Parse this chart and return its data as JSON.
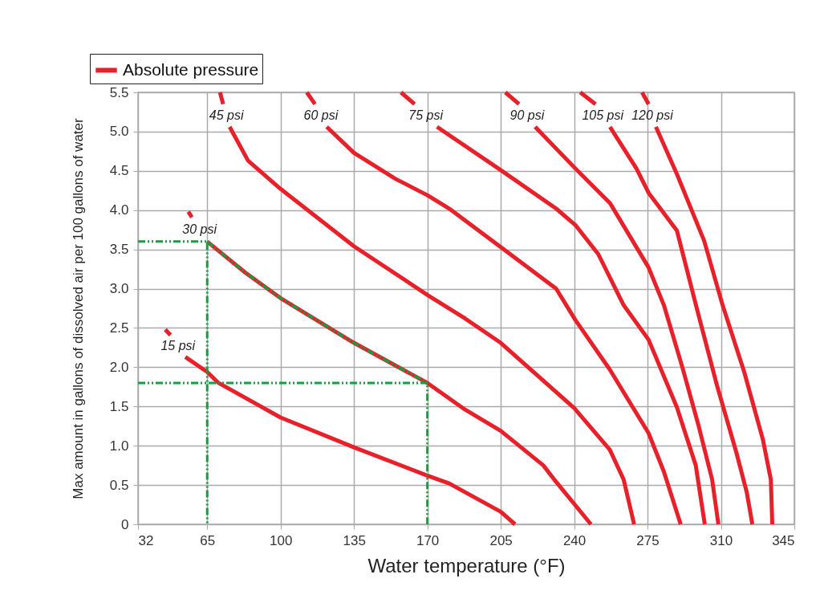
{
  "chart_data": {
    "type": "line",
    "xlabel": "Water temperature (°F)",
    "ylabel": "Max amount in gallons of dissolved air per 100 gallons of water",
    "legend_title": "Absolute pressure",
    "legend": "top left",
    "grid": true,
    "marker": "none",
    "xlim": [
      32,
      345
    ],
    "xticks": [
      32,
      65,
      100,
      135,
      170,
      205,
      240,
      275,
      310,
      345
    ],
    "ylim": [
      0,
      5.5
    ],
    "yticks": [
      0,
      0.5,
      {
        "value": 1,
        "label": "1.0"
      },
      1.5,
      {
        "value": 2,
        "label": "2.0"
      },
      2.5,
      {
        "value": 3,
        "label": "3.0"
      },
      3.5,
      {
        "value": 4,
        "label": "4.0"
      },
      4.5,
      {
        "value": 5,
        "label": "5.0"
      },
      5.5
    ],
    "series": [
      {
        "name": "15 psi",
        "color": "#e8202a",
        "x": [
          45,
          47.5,
          null,
          54.6,
          65,
          70.4,
          100,
          135,
          170,
          180.4,
          205,
          211.8
        ],
        "values": [
          2.48,
          2.41,
          null,
          2.13,
          1.94,
          1.8,
          1.36,
          0.98,
          0.62,
          0.52,
          0.16,
          0
        ]
      },
      {
        "name": "30 psi",
        "color": "#e8202a",
        "x": [
          56,
          57.7,
          null,
          65,
          83.4,
          100,
          135,
          170,
          188,
          205,
          225.3,
          231.4,
          248
        ],
        "values": [
          3.98,
          3.91,
          null,
          3.6,
          3.2,
          2.88,
          2.31,
          1.8,
          1.46,
          1.19,
          0.75,
          0.54,
          0
        ]
      },
      {
        "name": "45 psi",
        "color": "#e8202a",
        "x": [
          71.1,
          72.6,
          null,
          75.7,
          84.5,
          100,
          135,
          170,
          188,
          205,
          240,
          257,
          263.6,
          268.6
        ],
        "values": [
          5.5,
          5.35,
          null,
          5.06,
          4.63,
          4.27,
          3.54,
          2.92,
          2.62,
          2.31,
          1.48,
          0.95,
          0.57,
          0
        ]
      },
      {
        "name": "60 psi",
        "color": "#e8202a",
        "x": [
          112.5,
          116.4,
          null,
          122,
          135,
          154.7,
          170,
          180.4,
          205,
          231.4,
          240.6,
          257,
          275.5,
          282.8,
          290.8
        ],
        "values": [
          5.5,
          5.35,
          null,
          5.06,
          4.73,
          4.4,
          4.19,
          4.02,
          3.53,
          3.0,
          2.6,
          1.97,
          1.16,
          0.67,
          0
        ]
      },
      {
        "name": "75 psi",
        "color": "#e8202a",
        "x": [
          157.4,
          163.9,
          null,
          174.6,
          205,
          231.4,
          240.6,
          251.5,
          263.6,
          275.5,
          289,
          298,
          302.3
        ],
        "values": [
          5.5,
          5.35,
          null,
          5.06,
          4.51,
          4.02,
          3.81,
          3.44,
          2.79,
          2.35,
          1.49,
          0.75,
          0
        ]
      },
      {
        "name": "90 psi",
        "color": "#e8202a",
        "x": [
          207.2,
          213.7,
          null,
          221.4,
          240.6,
          257.1,
          275.5,
          282.8,
          291.6,
          299.3,
          305.8,
          308.8
        ],
        "values": [
          5.5,
          5.35,
          null,
          5.06,
          4.53,
          4.09,
          3.27,
          2.79,
          2.0,
          1.26,
          0.57,
          0
        ]
      },
      {
        "name": "105 psi",
        "color": "#e8202a",
        "x": [
          242.9,
          250.2,
          null,
          257.1,
          269.7,
          275.5,
          289,
          298.1,
          308.1,
          317.3,
          322.3,
          325
        ],
        "values": [
          5.5,
          5.35,
          null,
          5.06,
          4.53,
          4.22,
          3.74,
          2.79,
          1.77,
          0.92,
          0.41,
          0
        ]
      },
      {
        "name": "120 psi",
        "color": "#e8202a",
        "x": [
          272.4,
          275.5,
          null,
          279,
          289,
          302,
          310.8,
          321.1,
          330,
          333.8,
          334.5
        ],
        "values": [
          5.5,
          5.35,
          null,
          5.06,
          4.46,
          3.61,
          2.79,
          1.94,
          1.08,
          0.57,
          0
        ]
      },
      {
        "color": "#12a040",
        "line_style": "dashed",
        "x": [
          32,
          65,
          65
        ],
        "values": [
          3.6,
          3.6,
          0
        ]
      },
      {
        "color": "#12a040",
        "line_style": "dashed",
        "x": [
          32,
          170,
          170
        ],
        "values": [
          1.8,
          1.8,
          0
        ]
      },
      {
        "color": "#12a040",
        "line_style": "dashed",
        "x": [
          65,
          83.4,
          100,
          135,
          170
        ],
        "values": [
          3.6,
          3.2,
          2.88,
          2.31,
          1.8
        ]
      }
    ]
  }
}
